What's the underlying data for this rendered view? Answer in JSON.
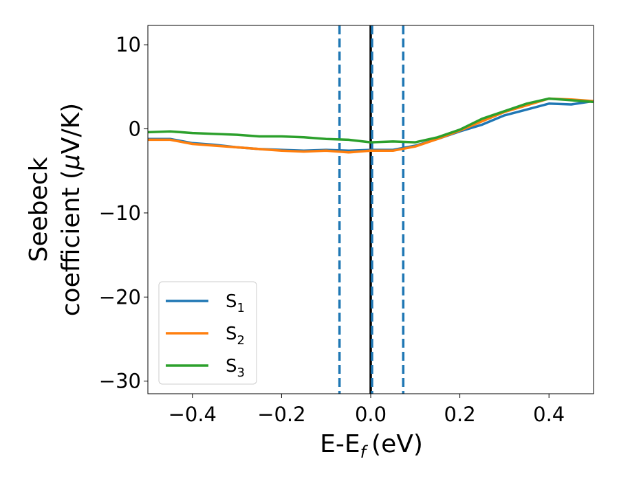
{
  "chart_data": {
    "type": "line",
    "xlabel": "E-E",
    "xlabel_sub": "f",
    "xlabel_unit": "(eV)",
    "ylabel_line1": "Seebeck",
    "ylabel_line2": "coefficient  (",
    "ylabel_mu": "μ",
    "ylabel_unit": "V/K)",
    "xlim": [
      -0.5,
      0.5
    ],
    "ylim": [
      -31.5,
      12.3
    ],
    "xticks": [
      -0.4,
      -0.2,
      0.0,
      0.2,
      0.4
    ],
    "xtick_labels": [
      "−0.4",
      "−0.2",
      "0.0",
      "0.2",
      "0.4"
    ],
    "yticks": [
      10,
      0,
      -10,
      -20,
      -30
    ],
    "ytick_labels": [
      "10",
      "0",
      "−10",
      "−20",
      "−30"
    ],
    "legend_position": "lower-left",
    "vlines": [
      {
        "x": -0.07,
        "style": "dashed",
        "color": "#1f77b4"
      },
      {
        "x": 0.0,
        "style": "solid",
        "color": "#000000"
      },
      {
        "x": 0.003,
        "style": "dashed",
        "color": "#1f77b4"
      },
      {
        "x": 0.073,
        "style": "dashed",
        "color": "#1f77b4"
      }
    ],
    "x": [
      -0.5,
      -0.45,
      -0.4,
      -0.35,
      -0.3,
      -0.25,
      -0.2,
      -0.15,
      -0.1,
      -0.05,
      0.0,
      0.05,
      0.1,
      0.15,
      0.2,
      0.25,
      0.3,
      0.35,
      0.4,
      0.45,
      0.5
    ],
    "series": [
      {
        "name": "S",
        "sub": "1",
        "color": "#1f77b4",
        "values": [
          -1.2,
          -1.2,
          -1.7,
          -1.9,
          -2.2,
          -2.4,
          -2.5,
          -2.6,
          -2.5,
          -2.6,
          -2.5,
          -2.5,
          -2.0,
          -1.2,
          -0.3,
          0.5,
          1.6,
          2.3,
          3.0,
          2.9,
          3.3
        ]
      },
      {
        "name": "S",
        "sub": "2",
        "color": "#ff7f0e",
        "values": [
          -1.3,
          -1.3,
          -1.8,
          -2.0,
          -2.2,
          -2.4,
          -2.6,
          -2.7,
          -2.6,
          -2.8,
          -2.6,
          -2.6,
          -2.1,
          -1.2,
          -0.2,
          0.9,
          2.0,
          2.8,
          3.6,
          3.5,
          3.3
        ]
      },
      {
        "name": "S",
        "sub": "3",
        "color": "#2ca02c",
        "values": [
          -0.4,
          -0.3,
          -0.5,
          -0.6,
          -0.7,
          -0.9,
          -0.9,
          -1.0,
          -1.2,
          -1.3,
          -1.6,
          -1.5,
          -1.6,
          -1.0,
          -0.1,
          1.2,
          2.1,
          3.0,
          3.6,
          3.4,
          3.2
        ]
      }
    ]
  }
}
